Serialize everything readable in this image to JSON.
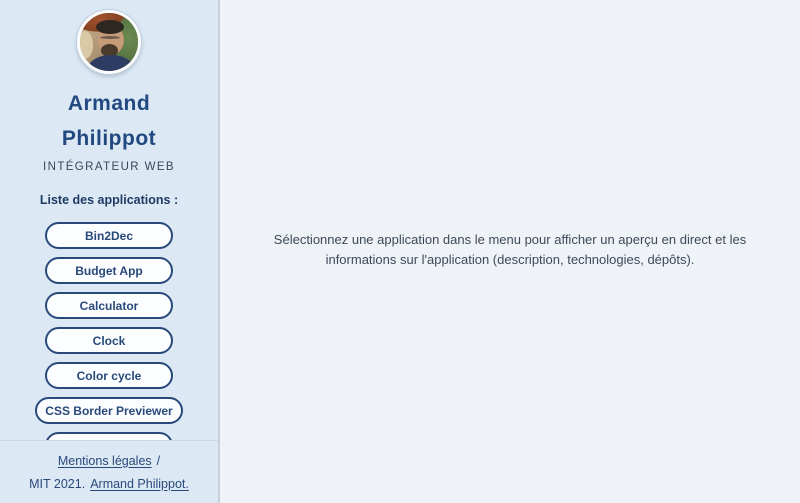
{
  "colors": {
    "navy_accent": "#29497b",
    "title_navy": "#21497f",
    "sidebar_background": "#dce9f5",
    "main_background": "#eff3f8",
    "button_background": "#fbfdff",
    "muted_text": "#3a4556",
    "main_text": "#3d4957",
    "divider": "#ccd7e3"
  },
  "sidebar": {
    "name": "Armand Philippot",
    "job_title": "INTÉGRATEUR WEB",
    "apps_heading": "Liste des applications :",
    "apps": [
      "Bin2Dec",
      "Budget App",
      "Calculator",
      "Clock",
      "Color cycle",
      "CSS Border Previewer",
      ""
    ],
    "footer": {
      "legal_link": "Mentions légales",
      "separator": "/",
      "license": "MIT 2021.",
      "author_link": "Armand Philippot."
    }
  },
  "main": {
    "placeholder_text": "Sélectionnez une application dans le menu pour afficher un aperçu en direct et les informations sur l'application (description, technologies, dépôts)."
  }
}
